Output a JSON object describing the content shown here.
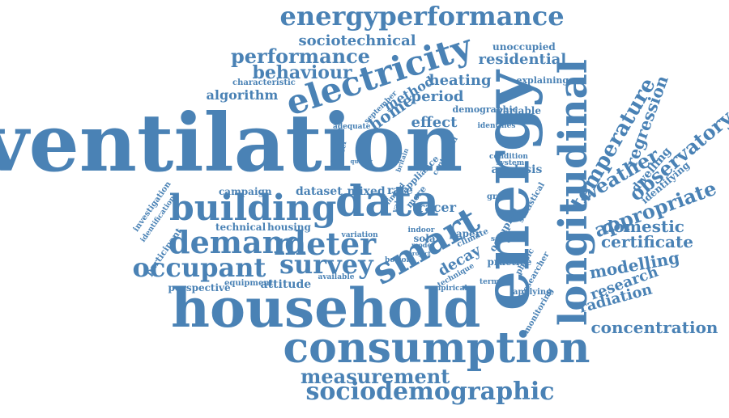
{
  "color": "#4a82b5",
  "background": "#ffffff",
  "words": [
    "ventilation",
    "household",
    "energy",
    "consumption",
    "longitudinal",
    "data",
    "electricity",
    "energyperformance",
    "building",
    "smart",
    "demand",
    "meter",
    "occupant",
    "survey",
    "sociodemographic",
    "measurement",
    "temperature",
    "weather",
    "appropriate",
    "observatory",
    "regression",
    "certificate",
    "domestic",
    "modelling",
    "research",
    "radiation",
    "concentration",
    "performance",
    "behaviour",
    "sociotechnical",
    "residential",
    "heating",
    "period",
    "algorithm",
    "home",
    "effect",
    "method",
    "unoccupied",
    "explaining",
    "characteristic",
    "variable",
    "demographic",
    "dwelling",
    "identifying",
    "analysis",
    "tracer",
    "dataset",
    "mixed",
    "campaign",
    "technical",
    "housing",
    "attitude",
    "perspective",
    "equipment",
    "decay",
    "solar",
    "paper",
    "indoor",
    "practice",
    "empirical",
    "occupied",
    "statistical",
    "physic",
    "researcher",
    "applying",
    "monitoring",
    "climate",
    "sample",
    "identifies",
    "adequate",
    "differ",
    "facilitate",
    "september",
    "more",
    "appliance",
    "rate",
    "linked",
    "value",
    "great",
    "condition",
    "system",
    "quality",
    "britain",
    "contextual",
    "term",
    "technique",
    "available",
    "bottom",
    "model",
    "project",
    "variation",
    "investigation",
    "identification",
    "participant"
  ]
}
